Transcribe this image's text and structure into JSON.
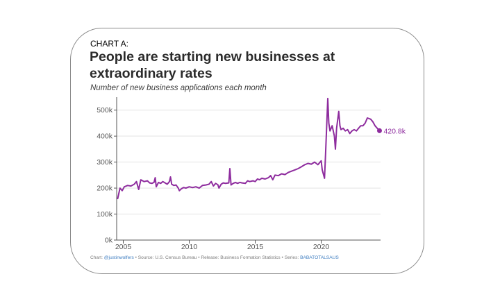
{
  "card": {
    "label": "CHART A:",
    "title": "People are starting new businesses at extraordinary rates",
    "subtitle": "Number of new business applications each month"
  },
  "source": {
    "prefix": "Chart: ",
    "author": "@justinwolfers",
    "middle": " • Source: U.S. Census Bureau • Release: Business Formation Statistics • Series: ",
    "series_id": "BABATOTALSAUS"
  },
  "colors": {
    "line": "#8e2c9e",
    "grid": "#e3e3e3",
    "axis": "#555555",
    "text": "#555555"
  },
  "chart_data": {
    "type": "line",
    "title": "People are starting new businesses at extraordinary rates",
    "subtitle": "Number of new business applications each month",
    "xlim": [
      2004.5,
      2024.5
    ],
    "ylim": [
      0,
      550000
    ],
    "grid": true,
    "legend": "none",
    "x_ticks": [
      {
        "value": 2005,
        "label": "2005"
      },
      {
        "value": 2010,
        "label": "2010"
      },
      {
        "value": 2015,
        "label": "2015"
      },
      {
        "value": 2020,
        "label": "2020"
      }
    ],
    "y_ticks": [
      {
        "value": 0,
        "label": "0k"
      },
      {
        "value": 100000,
        "label": "100k"
      },
      {
        "value": 200000,
        "label": "200k"
      },
      {
        "value": 300000,
        "label": "300k"
      },
      {
        "value": 400000,
        "label": "400k"
      },
      {
        "value": 500000,
        "label": "500k"
      }
    ],
    "end_label": "420.8k",
    "series": [
      {
        "points": [
          [
            2004.58,
            160000
          ],
          [
            2004.75,
            200000
          ],
          [
            2004.92,
            190000
          ],
          [
            2005.08,
            205000
          ],
          [
            2005.33,
            210000
          ],
          [
            2005.58,
            208000
          ],
          [
            2005.83,
            215000
          ],
          [
            2006.0,
            225000
          ],
          [
            2006.17,
            195000
          ],
          [
            2006.33,
            232000
          ],
          [
            2006.58,
            225000
          ],
          [
            2006.83,
            228000
          ],
          [
            2007.0,
            220000
          ],
          [
            2007.17,
            218000
          ],
          [
            2007.33,
            222000
          ],
          [
            2007.42,
            240000
          ],
          [
            2007.5,
            205000
          ],
          [
            2007.67,
            222000
          ],
          [
            2007.83,
            218000
          ],
          [
            2008.0,
            225000
          ],
          [
            2008.17,
            220000
          ],
          [
            2008.33,
            215000
          ],
          [
            2008.5,
            225000
          ],
          [
            2008.58,
            243000
          ],
          [
            2008.67,
            215000
          ],
          [
            2008.83,
            210000
          ],
          [
            2009.0,
            212000
          ],
          [
            2009.17,
            200000
          ],
          [
            2009.25,
            190000
          ],
          [
            2009.42,
            198000
          ],
          [
            2009.58,
            202000
          ],
          [
            2009.75,
            200000
          ],
          [
            2010.0,
            205000
          ],
          [
            2010.25,
            202000
          ],
          [
            2010.5,
            205000
          ],
          [
            2010.75,
            200000
          ],
          [
            2011.0,
            210000
          ],
          [
            2011.25,
            212000
          ],
          [
            2011.5,
            215000
          ],
          [
            2011.67,
            225000
          ],
          [
            2011.83,
            208000
          ],
          [
            2012.0,
            218000
          ],
          [
            2012.17,
            213000
          ],
          [
            2012.25,
            200000
          ],
          [
            2012.42,
            215000
          ],
          [
            2012.58,
            220000
          ],
          [
            2012.75,
            218000
          ],
          [
            2013.0,
            220000
          ],
          [
            2013.08,
            275000
          ],
          [
            2013.17,
            212000
          ],
          [
            2013.33,
            218000
          ],
          [
            2013.5,
            222000
          ],
          [
            2013.67,
            218000
          ],
          [
            2013.83,
            222000
          ],
          [
            2014.0,
            220000
          ],
          [
            2014.25,
            218000
          ],
          [
            2014.42,
            228000
          ],
          [
            2014.58,
            225000
          ],
          [
            2014.83,
            228000
          ],
          [
            2015.0,
            225000
          ],
          [
            2015.17,
            235000
          ],
          [
            2015.33,
            232000
          ],
          [
            2015.5,
            238000
          ],
          [
            2015.75,
            235000
          ],
          [
            2016.0,
            240000
          ],
          [
            2016.17,
            248000
          ],
          [
            2016.33,
            232000
          ],
          [
            2016.5,
            250000
          ],
          [
            2016.75,
            248000
          ],
          [
            2017.0,
            255000
          ],
          [
            2017.25,
            252000
          ],
          [
            2017.5,
            260000
          ],
          [
            2017.75,
            265000
          ],
          [
            2018.0,
            270000
          ],
          [
            2018.25,
            275000
          ],
          [
            2018.5,
            282000
          ],
          [
            2018.75,
            290000
          ],
          [
            2019.0,
            295000
          ],
          [
            2019.25,
            292000
          ],
          [
            2019.5,
            300000
          ],
          [
            2019.75,
            290000
          ],
          [
            2020.0,
            305000
          ],
          [
            2020.08,
            270000
          ],
          [
            2020.25,
            238000
          ],
          [
            2020.33,
            330000
          ],
          [
            2020.5,
            545000
          ],
          [
            2020.58,
            450000
          ],
          [
            2020.67,
            420000
          ],
          [
            2020.83,
            440000
          ],
          [
            2021.0,
            400000
          ],
          [
            2021.08,
            350000
          ],
          [
            2021.17,
            430000
          ],
          [
            2021.33,
            495000
          ],
          [
            2021.42,
            440000
          ],
          [
            2021.5,
            425000
          ],
          [
            2021.67,
            430000
          ],
          [
            2021.83,
            420000
          ],
          [
            2022.0,
            425000
          ],
          [
            2022.17,
            410000
          ],
          [
            2022.33,
            420000
          ],
          [
            2022.5,
            425000
          ],
          [
            2022.67,
            420000
          ],
          [
            2022.83,
            430000
          ],
          [
            2023.0,
            440000
          ],
          [
            2023.17,
            440000
          ],
          [
            2023.33,
            450000
          ],
          [
            2023.5,
            470000
          ],
          [
            2023.75,
            465000
          ],
          [
            2023.92,
            455000
          ],
          [
            2024.08,
            440000
          ],
          [
            2024.25,
            430000
          ],
          [
            2024.42,
            420800
          ]
        ]
      }
    ]
  }
}
